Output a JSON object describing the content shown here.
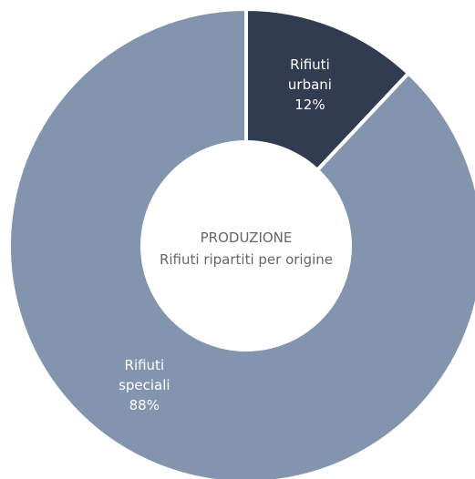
{
  "chart_data": {
    "type": "pie",
    "style": "donut",
    "center_title": "PRODUZIONE",
    "center_subtitle": "Rifiuti ripartiti per origine",
    "slices": [
      {
        "label_lines": [
          "Rifiuti",
          "urbani"
        ],
        "value": 12,
        "value_label": "12%",
        "color": "#313c50"
      },
      {
        "label_lines": [
          "Rifiuti",
          "speciali"
        ],
        "value": 88,
        "value_label": "88%",
        "color": "#8394ae"
      }
    ]
  }
}
